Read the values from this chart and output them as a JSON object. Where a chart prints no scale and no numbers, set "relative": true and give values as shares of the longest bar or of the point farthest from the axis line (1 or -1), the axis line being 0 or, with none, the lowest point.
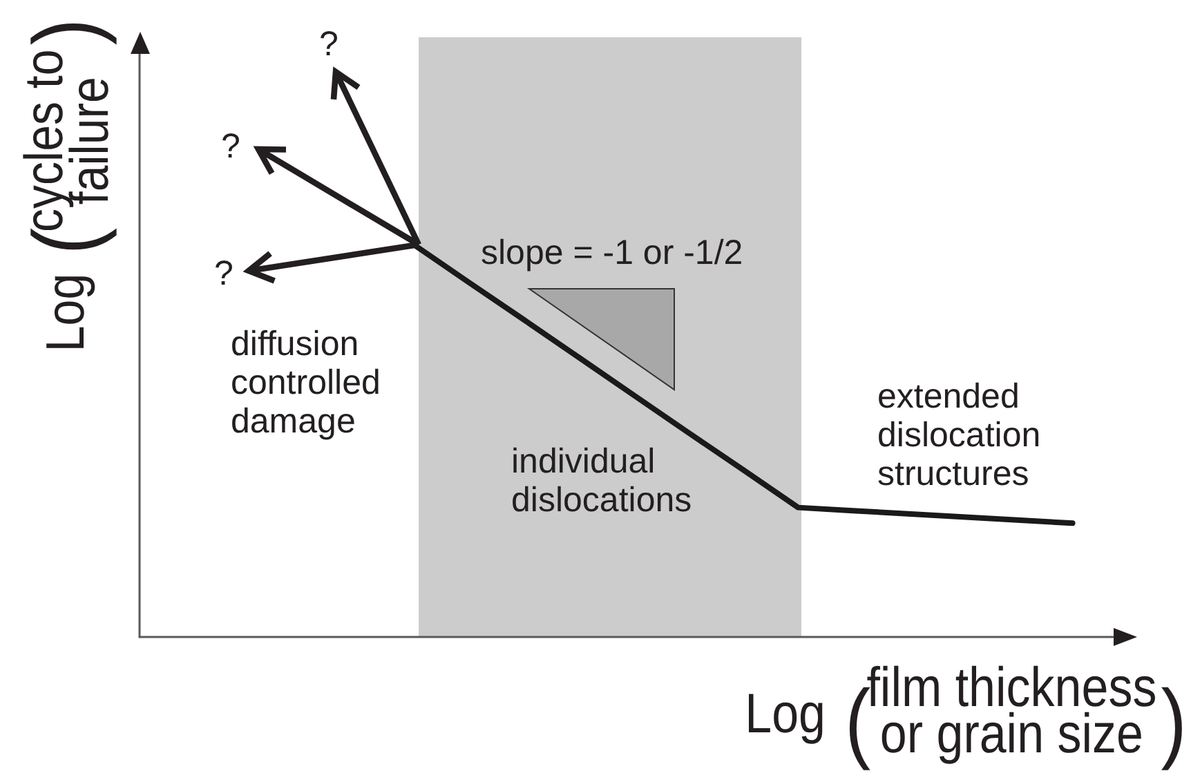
{
  "chart_data": {
    "type": "line",
    "xlabel": "Log (film thickness\nor grain size)",
    "ylabel": "Log (cycles to\nfailure)",
    "relative": true,
    "categories": [
      null,
      null,
      null,
      null,
      null,
      null,
      null,
      null,
      null,
      null,
      null,
      null,
      null,
      null,
      null,
      null,
      null,
      null,
      null
    ],
    "values": [
      null,
      null,
      null,
      null,
      null,
      1,
      0.904,
      0.809,
      0.713,
      0.617,
      0.521,
      0.426,
      0.33,
      0.322,
      0.314,
      0.306,
      0.298,
      0.29,
      null
    ],
    "color": "#1a1a1a",
    "line_style": "solid",
    "annotations": [
      "?",
      "?",
      "?",
      "slope = -1 or -1/2",
      "diffusion\ncontrolled\ndamage",
      "individual\ndislocations",
      "extended\ndislocation\nstructures"
    ]
  }
}
